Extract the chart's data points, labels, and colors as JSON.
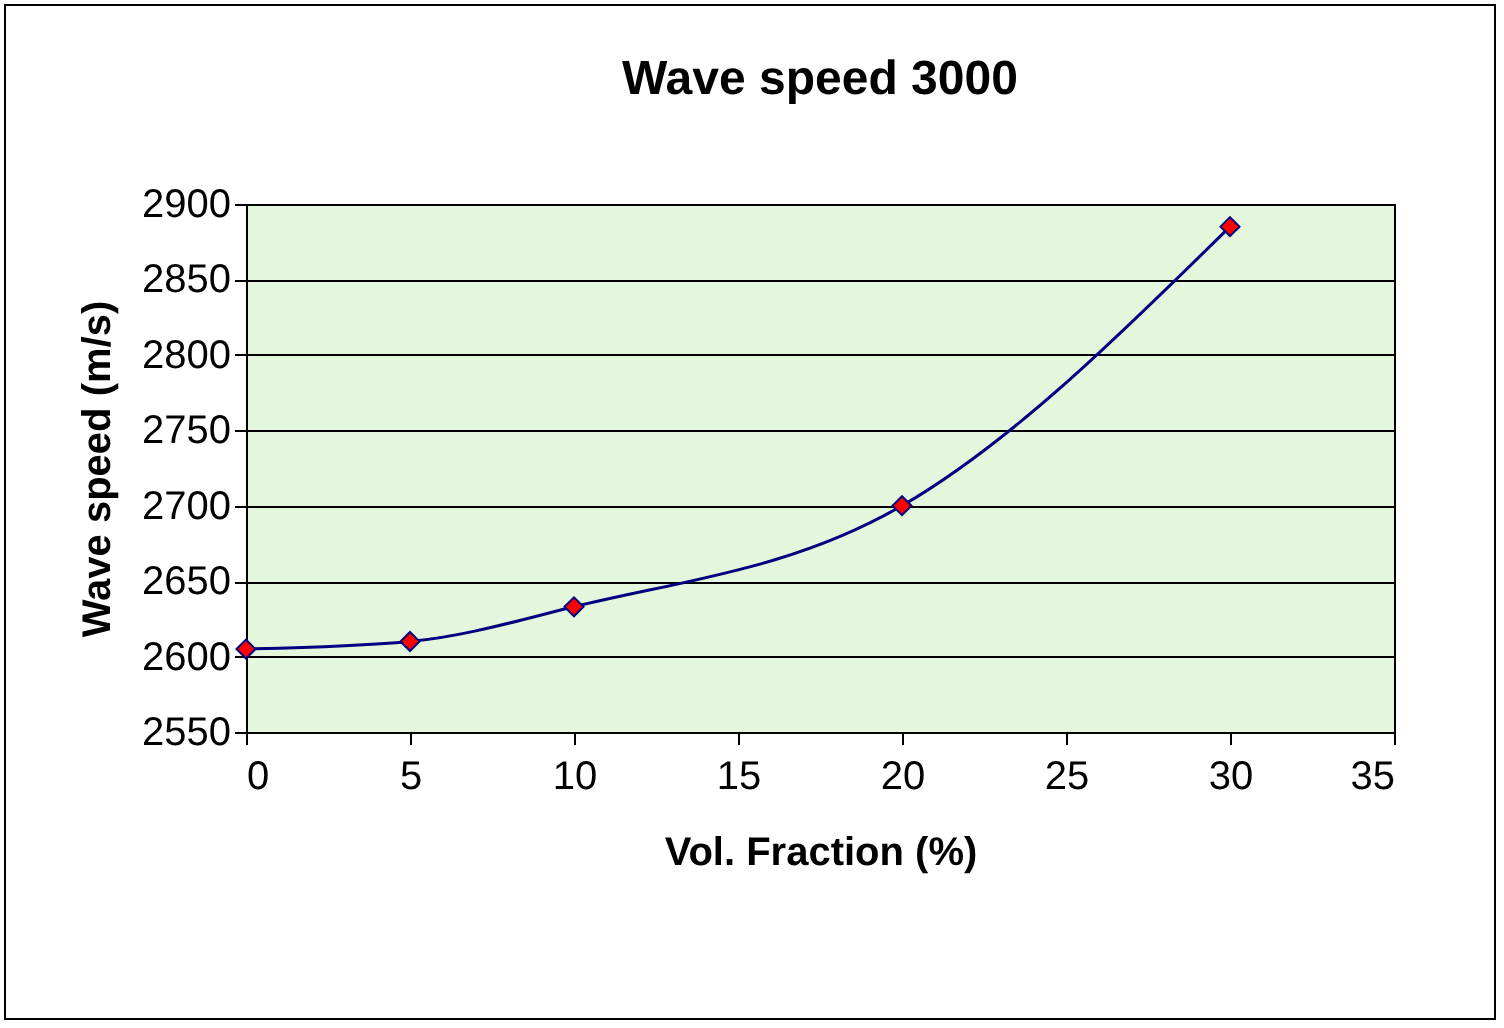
{
  "chart_data": {
    "type": "line",
    "title": "Wave speed 3000",
    "xlabel": "Vol. Fraction (%)",
    "ylabel": "Wave speed (m/s)",
    "x": [
      0,
      5,
      10,
      20,
      30
    ],
    "series": [
      {
        "color": "#000080",
        "values": [
          2605,
          2610,
          2633,
          2700,
          2885
        ]
      }
    ],
    "xlim": [
      0,
      35
    ],
    "xticks": [
      0,
      5,
      10,
      15,
      20,
      25,
      30,
      35
    ],
    "ylim": [
      2550,
      2900
    ],
    "yticks": [
      2550,
      2600,
      2650,
      2700,
      2750,
      2800,
      2850,
      2900
    ],
    "grid": "y",
    "marker": "diamond",
    "line_style": "solid"
  }
}
